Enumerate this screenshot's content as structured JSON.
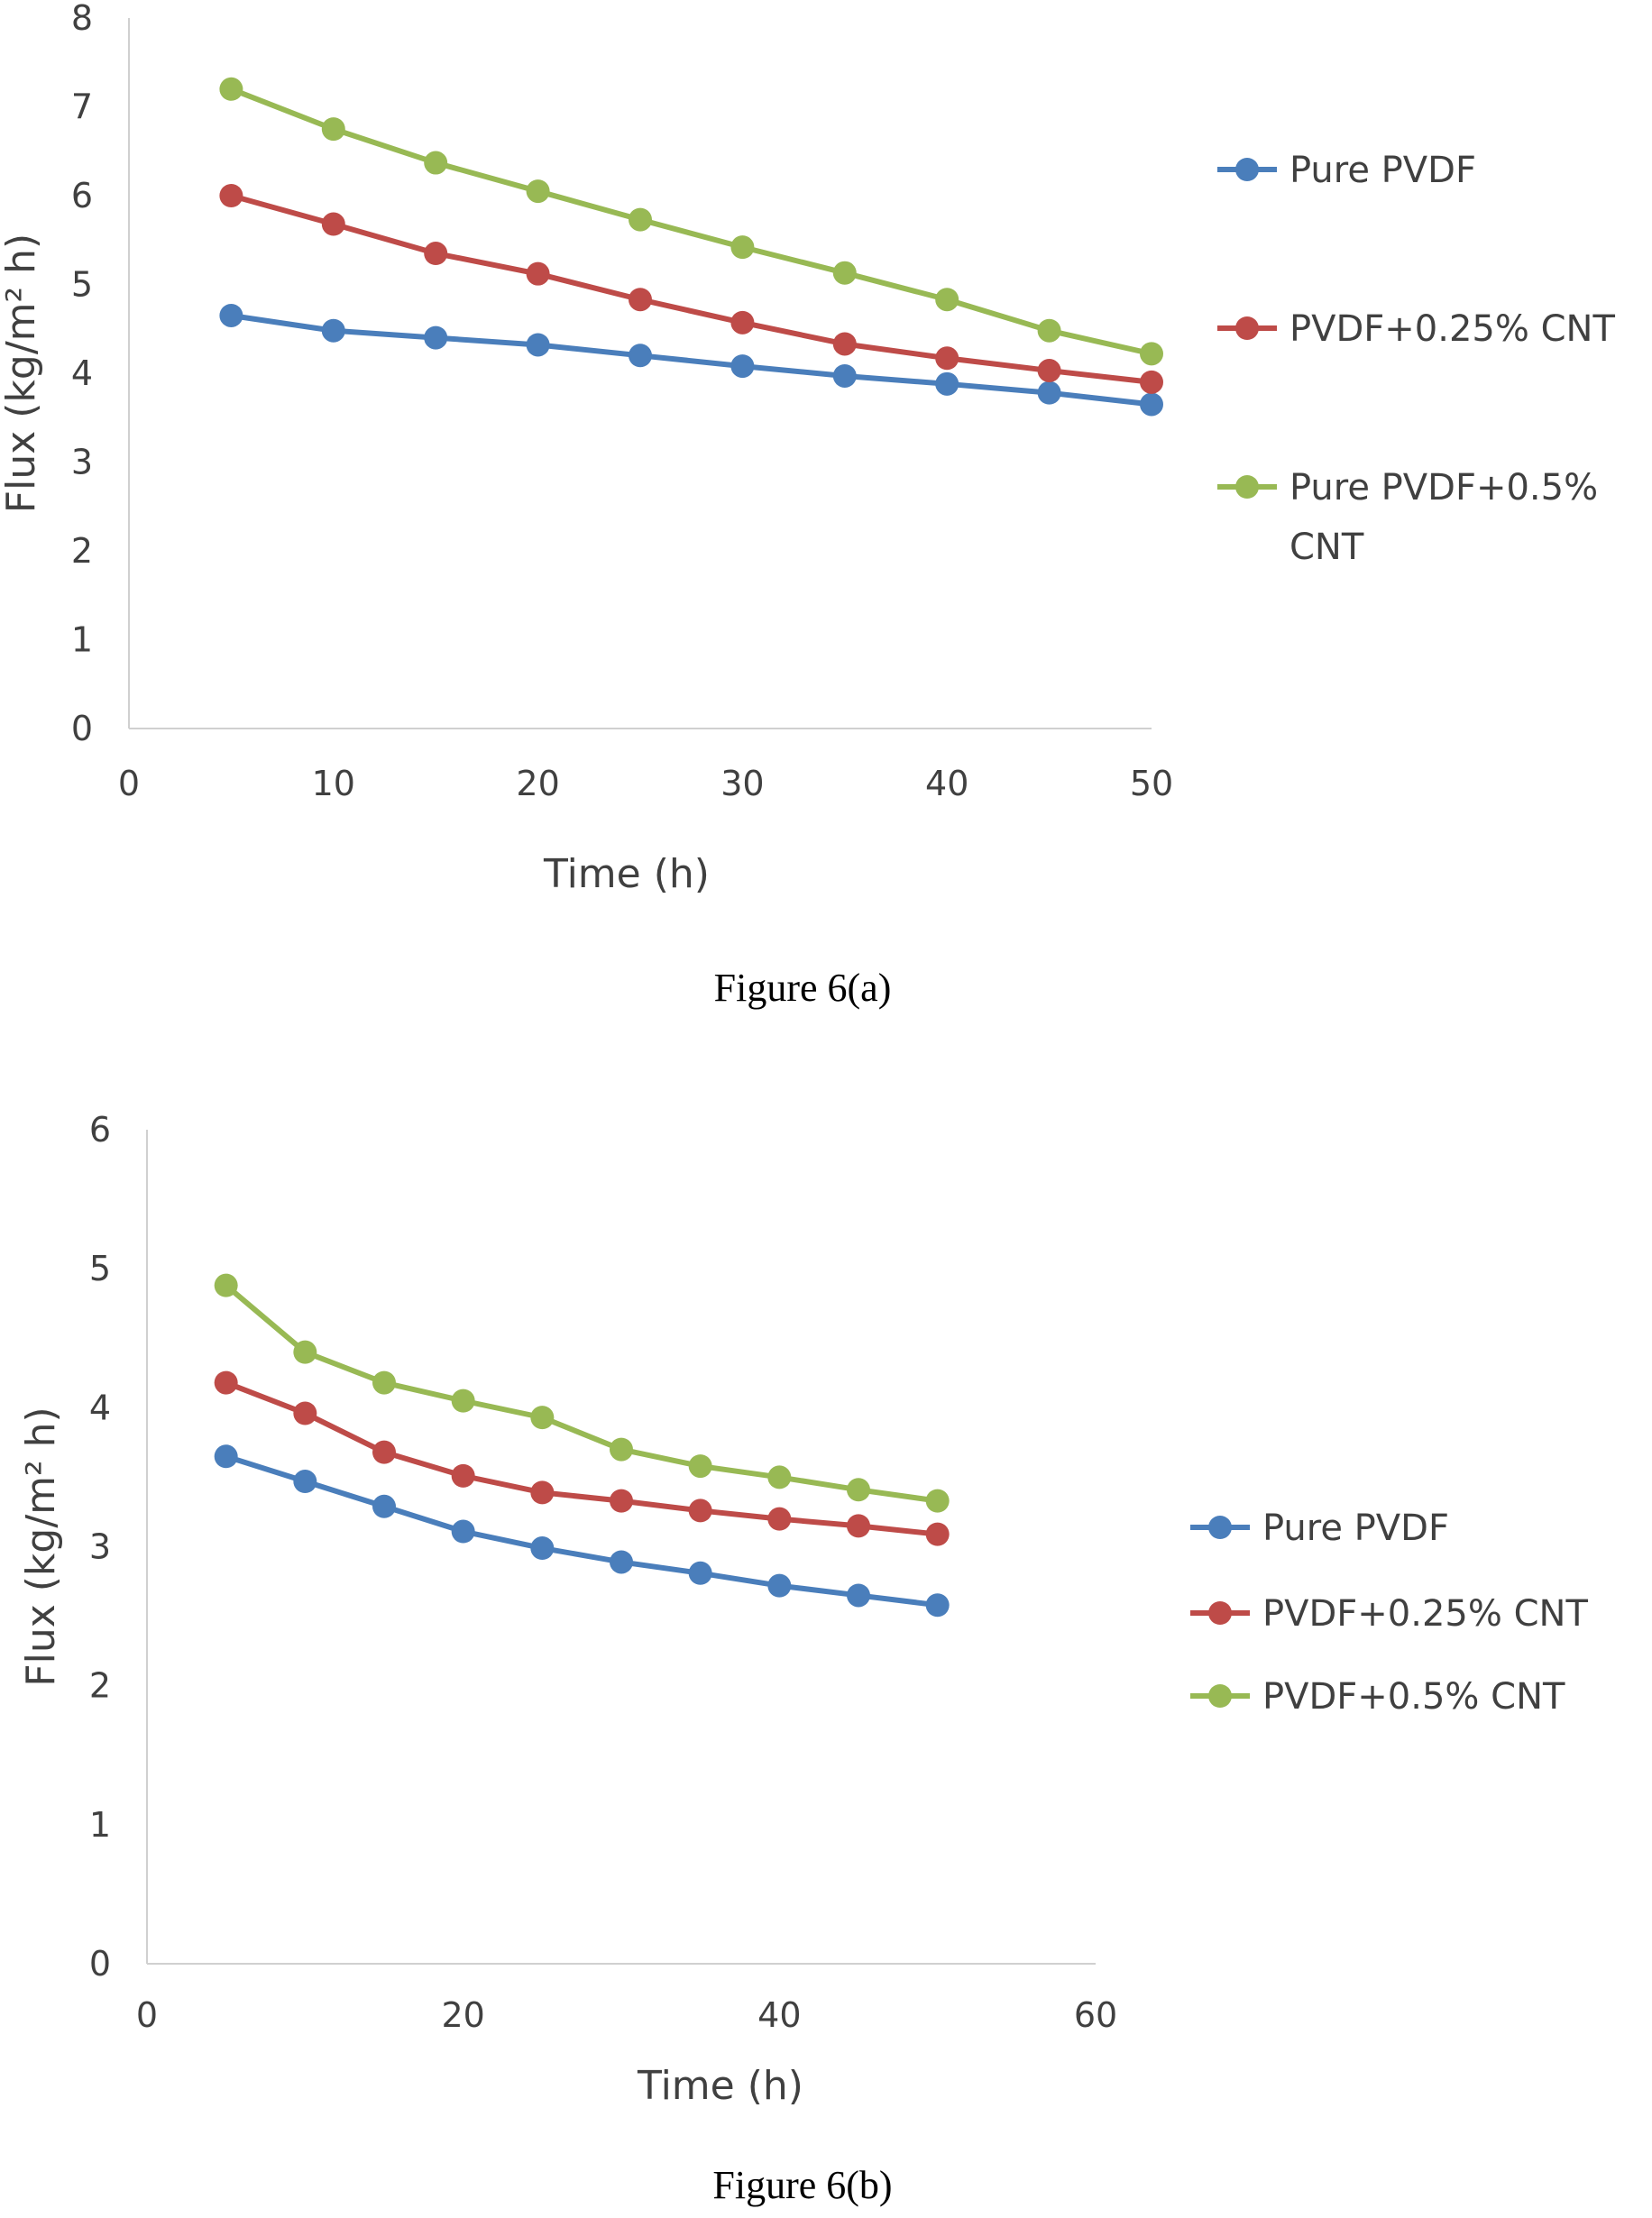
{
  "chart_data": [
    {
      "type": "line",
      "xlabel": "Time (h)",
      "ylabel": "Flux (kg/m² h)",
      "xlim": [
        0,
        50
      ],
      "ylim": [
        0,
        8
      ],
      "xticks": [
        0,
        10,
        20,
        30,
        40,
        50
      ],
      "yticks": [
        0,
        1,
        2,
        3,
        4,
        5,
        6,
        7,
        8
      ],
      "grid": false,
      "legend_position": "right",
      "x": [
        5,
        10,
        15,
        20,
        25,
        30,
        35,
        40,
        45,
        50
      ],
      "series": [
        {
          "name": "Pure PVDF",
          "legend_lines": [
            "Pure PVDF"
          ],
          "color": "#4a7ebb",
          "values": [
            4.65,
            4.48,
            4.4,
            4.32,
            4.2,
            4.08,
            3.97,
            3.88,
            3.78,
            3.65
          ]
        },
        {
          "name": "PVDF+0.25% CNT",
          "legend_lines": [
            "PVDF+0.25% CNT"
          ],
          "color": "#be4b48",
          "values": [
            6.0,
            5.68,
            5.35,
            5.12,
            4.83,
            4.57,
            4.33,
            4.17,
            4.03,
            3.9
          ]
        },
        {
          "name": "Pure PVDF+0.5% CNT",
          "legend_lines": [
            "Pure PVDF+0.5%",
            "CNT"
          ],
          "color": "#98b954",
          "values": [
            7.2,
            6.75,
            6.37,
            6.05,
            5.73,
            5.42,
            5.13,
            4.83,
            4.48,
            4.22
          ]
        }
      ]
    },
    {
      "type": "line",
      "xlabel": "Time (h)",
      "ylabel": "Flux (kg/m² h)",
      "xlim": [
        0,
        60
      ],
      "ylim": [
        0,
        6
      ],
      "xticks": [
        0,
        20,
        40,
        60
      ],
      "yticks": [
        0,
        1,
        2,
        3,
        4,
        5,
        6
      ],
      "grid": false,
      "legend_position": "right",
      "x": [
        5,
        10,
        15,
        20,
        25,
        30,
        35,
        40,
        45,
        50
      ],
      "series": [
        {
          "name": "Pure PVDF",
          "legend_lines": [
            "Pure PVDF"
          ],
          "color": "#4a7ebb",
          "values": [
            3.65,
            3.47,
            3.29,
            3.11,
            2.99,
            2.89,
            2.81,
            2.72,
            2.65,
            2.58
          ]
        },
        {
          "name": "PVDF+0.25% CNT",
          "legend_lines": [
            "PVDF+0.25% CNT"
          ],
          "color": "#be4b48",
          "values": [
            4.18,
            3.96,
            3.68,
            3.51,
            3.39,
            3.33,
            3.26,
            3.2,
            3.15,
            3.09
          ]
        },
        {
          "name": "PVDF+0.5% CNT",
          "legend_lines": [
            "PVDF+0.5% CNT"
          ],
          "color": "#98b954",
          "values": [
            4.88,
            4.4,
            4.18,
            4.05,
            3.93,
            3.7,
            3.58,
            3.5,
            3.41,
            3.33
          ]
        }
      ]
    }
  ],
  "captions": {
    "a": "Figure 6(a)",
    "b": "Figure 6(b)"
  }
}
